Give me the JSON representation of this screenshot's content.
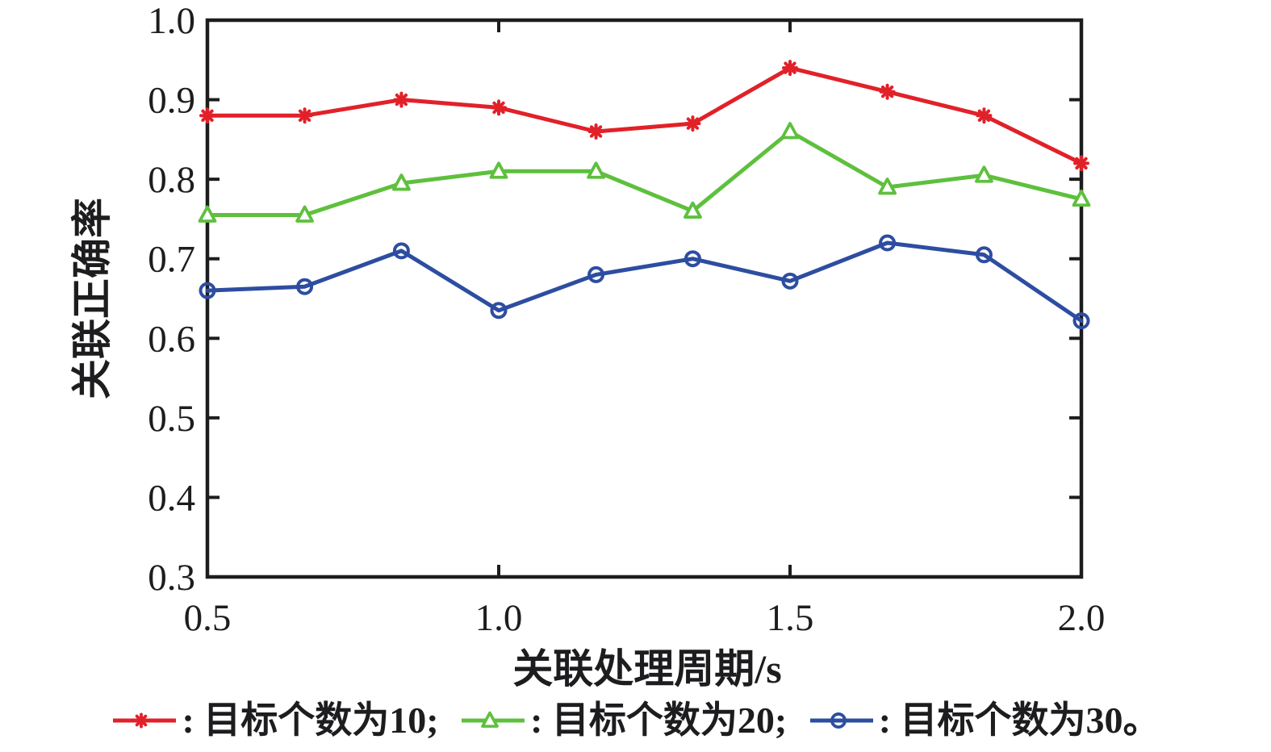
{
  "figure": {
    "background": "#ffffff",
    "ink_color": "#1d1d1f"
  },
  "chart_data": {
    "type": "line",
    "title": "",
    "xlabel": "关联处理周期/s",
    "ylabel": "关联正确率",
    "xlim": [
      0.5,
      2.0
    ],
    "ylim": [
      0.3,
      1.0
    ],
    "xticks": [
      0.5,
      1.0,
      1.5,
      2.0
    ],
    "yticks": [
      0.3,
      0.4,
      0.5,
      0.6,
      0.7,
      0.8,
      0.9,
      1.0
    ],
    "grid": false,
    "legend_position": "below-chart",
    "x": [
      0.5,
      0.667,
      0.833,
      1.0,
      1.167,
      1.333,
      1.5,
      1.667,
      1.833,
      2.0
    ],
    "series": [
      {
        "name": "目标个数为10",
        "marker": "asterisk",
        "color": "#e12129",
        "legend_text": ": 目标个数为10; ",
        "values": [
          0.88,
          0.88,
          0.9,
          0.89,
          0.86,
          0.87,
          0.94,
          0.91,
          0.88,
          0.82
        ]
      },
      {
        "name": "目标个数为20",
        "marker": "triangle",
        "color": "#5ec03d",
        "legend_text": ": 目标个数为20; ",
        "values": [
          0.755,
          0.755,
          0.795,
          0.81,
          0.81,
          0.76,
          0.86,
          0.79,
          0.805,
          0.775
        ]
      },
      {
        "name": "目标个数为30",
        "marker": "circle",
        "color": "#2d4da0",
        "legend_text": ": 目标个数为30。",
        "values": [
          0.66,
          0.665,
          0.71,
          0.635,
          0.68,
          0.7,
          0.672,
          0.72,
          0.705,
          0.622
        ]
      }
    ]
  }
}
